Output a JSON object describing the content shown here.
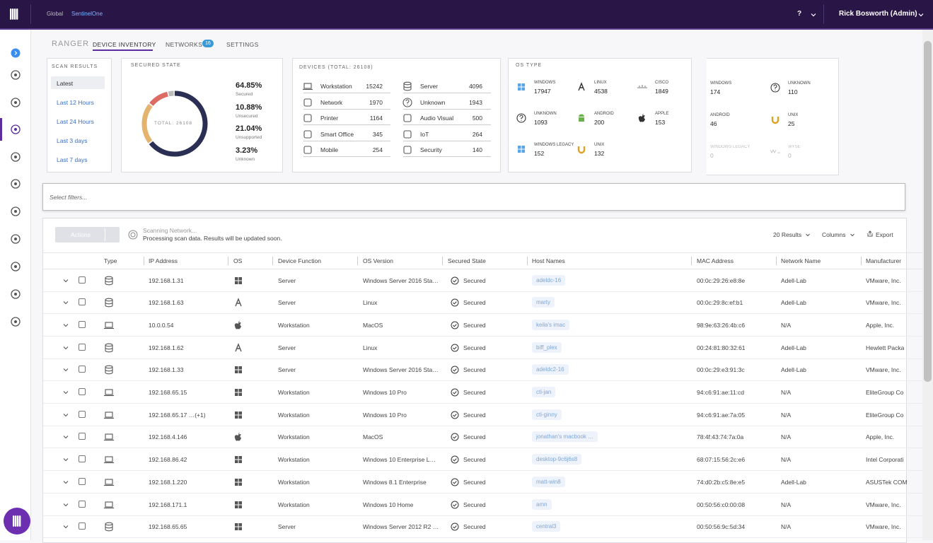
{
  "header": {
    "breadcrumb": [
      "Global",
      "SentinelOne"
    ],
    "help": "?",
    "user": "Rick Bosworth (Admin)"
  },
  "tabs": {
    "items": [
      "RANGER",
      "DEVICE INVENTORY",
      "NETWORKS",
      "SETTINGS"
    ],
    "networks_badge": "16"
  },
  "scan_results": {
    "title": "SCAN RESULTS",
    "items": [
      "Latest",
      "Last 12 Hours",
      "Last 24 Hours",
      "Last 3 days",
      "Last 7 days"
    ]
  },
  "secured_state": {
    "title": "SECURED STATE",
    "total": "TOTAL: 26108",
    "stats": [
      {
        "value": 64.85,
        "value_label": "64.85%",
        "label": "Secured"
      },
      {
        "value": 10.88,
        "value_label": "10.88%",
        "label": "Unsecured"
      },
      {
        "value": 21.04,
        "value_label": "21.04%",
        "label": "Unsupported"
      },
      {
        "value": 3.23,
        "value_label": "3.23%",
        "label": "Unknown"
      }
    ]
  },
  "devices": {
    "title": "DEVICES (TOTAL: 26108)",
    "items": [
      {
        "name": "Workstation",
        "count": 15242
      },
      {
        "name": "Network",
        "count": 1970
      },
      {
        "name": "Printer",
        "count": 1164
      },
      {
        "name": "Smart Office",
        "count": 345
      },
      {
        "name": "Mobile",
        "count": 254
      },
      {
        "name": "Server",
        "count": 4096
      },
      {
        "name": "Unknown",
        "count": 1943
      },
      {
        "name": "Audio Visual",
        "count": 500
      },
      {
        "name": "IoT",
        "count": 264
      },
      {
        "name": "Security",
        "count": 140
      }
    ]
  },
  "os_type": {
    "title": "OS TYPE",
    "items": [
      {
        "name": "WINDOWS",
        "count": 17947
      },
      {
        "name": "LINUX",
        "count": 4538
      },
      {
        "name": "CISCO",
        "count": 1849
      },
      {
        "name": "UNKNOWN",
        "count": 1093
      },
      {
        "name": "ANDROID",
        "count": 200
      },
      {
        "name": "APPLE",
        "count": 153
      },
      {
        "name": "WINDOWS LEGACY",
        "count": 152
      },
      {
        "name": "UNIX",
        "count": 132
      }
    ]
  },
  "os_type_2": {
    "items": [
      {
        "name": "WINDOWS",
        "count": 174
      },
      {
        "name": "UNKNOWN",
        "count": 110
      },
      {
        "name": "ANDROID",
        "count": 46
      },
      {
        "name": "UNIX",
        "count": 25
      },
      {
        "name": "WINDOWS LEGACY",
        "count": 0
      },
      {
        "name": "WYSE",
        "count": 0
      }
    ]
  },
  "filters": {
    "placeholder": "Select filters..."
  },
  "toolbar": {
    "actions": "Actions",
    "scan_title": "Scanning Network...",
    "scan_text": "Processing scan data. Results will be updated soon.",
    "results": "20 Results",
    "columns": "Columns",
    "export": "Export"
  },
  "table": {
    "columns": [
      "Type",
      "IP Address",
      "OS",
      "Device Function",
      "OS Version",
      "Secured State",
      "Host Names",
      "MAC Address",
      "Network Name",
      "Manufacturer"
    ],
    "rows": [
      {
        "ip": "192.168.1.31",
        "function": "Server",
        "os_version": "Windows Server 2016 Sta…",
        "state": "Secured",
        "host": "adeldc-16",
        "mac": "00:0c:29:26:e8:8e",
        "network": "Adell-Lab",
        "manufacturer": "VMware, Inc."
      },
      {
        "ip": "192.168.1.63",
        "function": "Server",
        "os_version": "Linux",
        "state": "Secured",
        "host": "marty",
        "mac": "00:0c:29:8c:ef:b1",
        "network": "Adell-Lab",
        "manufacturer": "VMware, Inc."
      },
      {
        "ip": "10.0.0.54",
        "function": "Workstation",
        "os_version": "MacOS",
        "state": "Secured",
        "host": "keila's imac",
        "mac": "98:9e:63:26:4b:c6",
        "network": "N/A",
        "manufacturer": "Apple, Inc."
      },
      {
        "ip": "192.168.1.62",
        "function": "Server",
        "os_version": "Linux",
        "state": "Secured",
        "host": "biff_plex",
        "mac": "00:24:81:80:32:61",
        "network": "Adell-Lab",
        "manufacturer": "Hewlett Packa"
      },
      {
        "ip": "192.168.1.33",
        "function": "Server",
        "os_version": "Windows Server 2016 Sta…",
        "state": "Secured",
        "host": "adeldc2-16",
        "mac": "00:0c:29:e3:91:3c",
        "network": "Adell-Lab",
        "manufacturer": "VMware, Inc."
      },
      {
        "ip": "192.168.65.15",
        "function": "Workstation",
        "os_version": "Windows 10 Pro",
        "state": "Secured",
        "host": "cti-jan",
        "mac": "94:c6:91:ae:11:cd",
        "network": "N/A",
        "manufacturer": "EliteGroup Co"
      },
      {
        "ip": "192.168.65.17 …(+1)",
        "function": "Workstation",
        "os_version": "Windows 10 Pro",
        "state": "Secured",
        "host": "cti-ginny",
        "mac": "94:c6:91:ae:7a:05",
        "network": "N/A",
        "manufacturer": "EliteGroup Co"
      },
      {
        "ip": "192.168.4.146",
        "function": "Workstation",
        "os_version": "MacOS",
        "state": "Secured",
        "host": "jonathan's macbook …",
        "mac": "78:4f:43:74:7a:0a",
        "network": "N/A",
        "manufacturer": "Apple, Inc."
      },
      {
        "ip": "192.168.86.42",
        "function": "Workstation",
        "os_version": "Windows 10 Enterprise L…",
        "state": "Secured",
        "host": "desktop-9c6j6s8",
        "mac": "68:07:15:56:2c:e6",
        "network": "N/A",
        "manufacturer": "Intel Corporati"
      },
      {
        "ip": "192.168.1.220",
        "function": "Workstation",
        "os_version": "Windows 8.1 Enterprise",
        "state": "Secured",
        "host": "matt-win8",
        "mac": "74:d0:2b:c5:8e:e5",
        "network": "Adell-Lab",
        "manufacturer": "ASUSTek COM"
      },
      {
        "ip": "192.168.171.1",
        "function": "Workstation",
        "os_version": "Windows 10 Home",
        "state": "Secured",
        "host": "amn",
        "mac": "00:50:56:c0:00:08",
        "network": "N/A",
        "manufacturer": "VMware, Inc."
      },
      {
        "ip": "192.168.65.65",
        "function": "Server",
        "os_version": "Windows Server 2012 R2 …",
        "state": "Secured",
        "host": "central3",
        "mac": "00:50:56:9c:5d:34",
        "network": "N/A",
        "manufacturer": "VMware, Inc."
      }
    ]
  }
}
